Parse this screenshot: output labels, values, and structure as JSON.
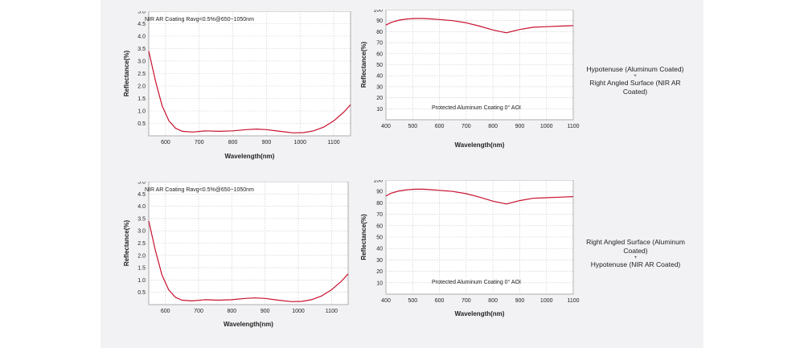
{
  "colors": {
    "curve": "#c8102e",
    "plot_bg": "#ffffff",
    "grid": "#c8c8c8",
    "axis_text": "#222222"
  },
  "notes": [
    {
      "line1": "Hypotenuse (Aluminum Coated)",
      "plus": "+",
      "line2": "Right Angled Surface (NIR AR Coated)"
    },
    {
      "line1": "Right Angled Surface (Aluminum Coated)",
      "plus": "+",
      "line2": "Hypotenuse  (NIR AR Coated)"
    }
  ],
  "chart_data": [
    {
      "type": "line",
      "title": "NIR AR Coating Ravg<0.5%@650~1050nm",
      "xlabel": "Wavelength(nm)",
      "ylabel": "Reflectance(%)",
      "xlim": [
        550,
        1150
      ],
      "ylim": [
        0,
        5
      ],
      "xticks": [
        600,
        700,
        800,
        900,
        1000,
        1100
      ],
      "yticks": [
        0.5,
        1.0,
        1.5,
        2.0,
        2.5,
        3.0,
        3.5,
        4.0,
        4.5,
        5.0
      ],
      "ytick_labels": [
        "0.5",
        "1.0",
        "1.5",
        "2.0",
        "2.5",
        "3.0",
        "3.5",
        "4.0",
        "4.5",
        "5.0"
      ],
      "grid": true,
      "series": [
        {
          "x": [
            550,
            570,
            590,
            610,
            630,
            650,
            680,
            720,
            760,
            800,
            840,
            870,
            900,
            940,
            980,
            1010,
            1040,
            1070,
            1100,
            1130,
            1150
          ],
          "y": [
            3.4,
            2.2,
            1.2,
            0.6,
            0.3,
            0.18,
            0.15,
            0.2,
            0.18,
            0.2,
            0.25,
            0.27,
            0.25,
            0.18,
            0.12,
            0.13,
            0.2,
            0.35,
            0.6,
            0.95,
            1.25
          ]
        }
      ]
    },
    {
      "type": "line",
      "title": "Protected Aluminum Coating  0°  AOI",
      "xlabel": "Wavelength(nm)",
      "ylabel": "Reflectance(%)",
      "xlim": [
        400,
        1100
      ],
      "ylim": [
        0,
        100
      ],
      "xticks": [
        400,
        500,
        600,
        700,
        800,
        900,
        1000,
        1100
      ],
      "yticks": [
        10,
        20,
        30,
        40,
        50,
        60,
        70,
        80,
        90,
        100
      ],
      "ytick_labels": [
        "10",
        "20",
        "30",
        "40",
        "50",
        "60",
        "70",
        "80",
        "90",
        "100"
      ],
      "grid": true,
      "series": [
        {
          "x": [
            400,
            420,
            450,
            480,
            510,
            540,
            570,
            600,
            650,
            700,
            750,
            800,
            850,
            900,
            950,
            1000,
            1050,
            1100
          ],
          "y": [
            86,
            88.5,
            90.5,
            91.5,
            92,
            92,
            91.5,
            91,
            90,
            88,
            85,
            81.5,
            79,
            82,
            84,
            84.5,
            85,
            85.5
          ]
        }
      ]
    },
    {
      "type": "line",
      "title": "NIR AR Coating Ravg<0.5%@650~1050nm",
      "xlabel": "Wavelength(nm)",
      "ylabel": "Reflectance(%)",
      "xlim": [
        550,
        1150
      ],
      "ylim": [
        0,
        5
      ],
      "xticks": [
        600,
        700,
        800,
        900,
        1000,
        1100
      ],
      "yticks": [
        0.5,
        1.0,
        1.5,
        2.0,
        2.5,
        3.0,
        3.5,
        4.0,
        4.5,
        5.0
      ],
      "ytick_labels": [
        "0.5",
        "1.0",
        "1.5",
        "2.0",
        "2.5",
        "3.0",
        "3.5",
        "4.0",
        "4.5",
        "5.0"
      ],
      "grid": true,
      "series": [
        {
          "x": [
            550,
            570,
            590,
            610,
            630,
            650,
            680,
            720,
            760,
            800,
            840,
            870,
            900,
            940,
            980,
            1010,
            1040,
            1070,
            1100,
            1130,
            1150
          ],
          "y": [
            3.4,
            2.2,
            1.2,
            0.6,
            0.3,
            0.18,
            0.15,
            0.2,
            0.18,
            0.2,
            0.25,
            0.27,
            0.25,
            0.18,
            0.12,
            0.13,
            0.2,
            0.35,
            0.6,
            0.95,
            1.25
          ]
        }
      ]
    },
    {
      "type": "line",
      "title": "Protected Aluminum Coating  0°  AOI",
      "xlabel": "Wavelength(nm)",
      "ylabel": "Reflectance(%)",
      "xlim": [
        400,
        1100
      ],
      "ylim": [
        0,
        100
      ],
      "xticks": [
        400,
        500,
        600,
        700,
        800,
        900,
        1000,
        1100
      ],
      "yticks": [
        10,
        20,
        30,
        40,
        50,
        60,
        70,
        80,
        90,
        100
      ],
      "ytick_labels": [
        "10",
        "20",
        "30",
        "40",
        "50",
        "60",
        "70",
        "80",
        "90",
        "100"
      ],
      "grid": true,
      "series": [
        {
          "x": [
            400,
            420,
            450,
            480,
            510,
            540,
            570,
            600,
            650,
            700,
            750,
            800,
            850,
            900,
            950,
            1000,
            1050,
            1100
          ],
          "y": [
            86,
            88.5,
            90.5,
            91.5,
            92,
            92,
            91.5,
            91,
            90,
            88,
            85,
            81.5,
            79,
            82,
            84,
            84.5,
            85,
            85.5
          ]
        }
      ]
    }
  ]
}
